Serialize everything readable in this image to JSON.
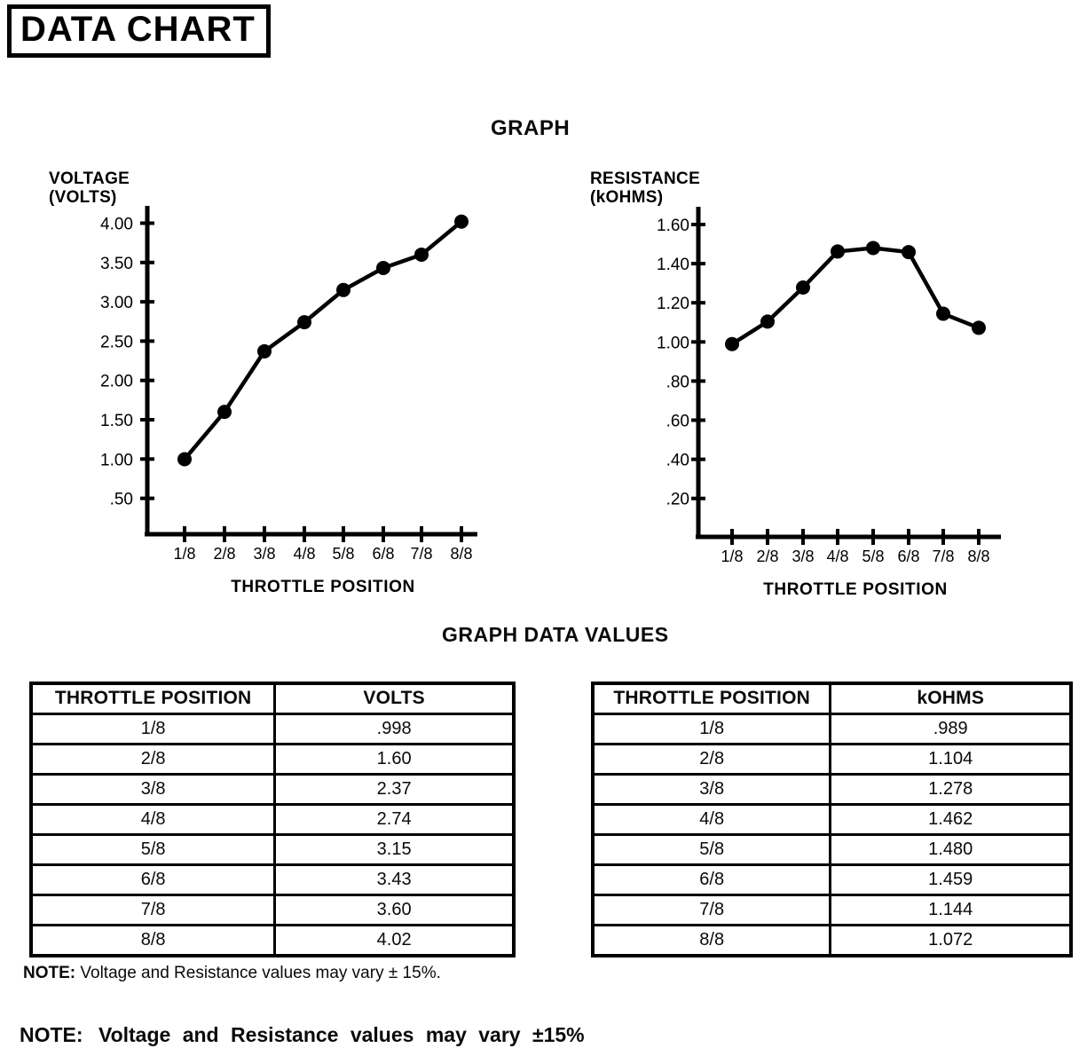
{
  "page": {
    "title": "DATA CHART",
    "graph_heading": "GRAPH",
    "tables_heading": "GRAPH DATA VALUES"
  },
  "chart_data": [
    {
      "type": "line",
      "name": "voltage-vs-throttle-position",
      "title": "GRAPH",
      "ylabel_lines": [
        "VOLTAGE",
        "(VOLTS)"
      ],
      "xlabel": "THROTTLE POSITION",
      "categories": [
        "1/8",
        "2/8",
        "3/8",
        "4/8",
        "5/8",
        "6/8",
        "7/8",
        "8/8"
      ],
      "values": [
        0.998,
        1.6,
        2.37,
        2.74,
        3.15,
        3.43,
        3.6,
        4.02
      ],
      "y_tick_labels": [
        "4.00",
        "3.50",
        "3.00",
        "2.50",
        "2.00",
        "1.50",
        "1.00",
        ".50"
      ],
      "y_tick_values": [
        4.0,
        3.5,
        3.0,
        2.5,
        2.0,
        1.5,
        1.0,
        0.5
      ],
      "ylim": [
        0,
        4.25
      ],
      "grid": false,
      "legend": "none",
      "marker": "filled-circle",
      "line_color": "#000000"
    },
    {
      "type": "line",
      "name": "resistance-vs-throttle-position",
      "title": "GRAPH",
      "ylabel_lines": [
        "RESISTANCE",
        "(kOHMS)"
      ],
      "xlabel": "THROTTLE POSITION",
      "categories": [
        "1/8",
        "2/8",
        "3/8",
        "4/8",
        "5/8",
        "6/8",
        "7/8",
        "8/8"
      ],
      "values": [
        0.989,
        1.104,
        1.278,
        1.462,
        1.48,
        1.459,
        1.144,
        1.072
      ],
      "y_tick_labels": [
        "1.60",
        "1.40",
        "1.20",
        "1.00",
        ".80",
        ".60",
        ".40",
        ".20"
      ],
      "y_tick_values": [
        1.6,
        1.4,
        1.2,
        1.0,
        0.8,
        0.6,
        0.4,
        0.2
      ],
      "ylim": [
        0,
        1.7
      ],
      "grid": false,
      "legend": "none",
      "marker": "filled-circle",
      "line_color": "#000000"
    }
  ],
  "tables": [
    {
      "name": "volts-table",
      "headers": [
        "THROTTLE POSITION",
        "VOLTS"
      ],
      "rows": [
        [
          "1/8",
          ".998"
        ],
        [
          "2/8",
          "1.60"
        ],
        [
          "3/8",
          "2.37"
        ],
        [
          "4/8",
          "2.74"
        ],
        [
          "5/8",
          "3.15"
        ],
        [
          "6/8",
          "3.43"
        ],
        [
          "7/8",
          "3.60"
        ],
        [
          "8/8",
          "4.02"
        ]
      ]
    },
    {
      "name": "kohms-table",
      "headers": [
        "THROTTLE POSITION",
        "kOHMS"
      ],
      "rows": [
        [
          "1/8",
          ".989"
        ],
        [
          "2/8",
          "1.104"
        ],
        [
          "3/8",
          "1.278"
        ],
        [
          "4/8",
          "1.462"
        ],
        [
          "5/8",
          "1.480"
        ],
        [
          "6/8",
          "1.459"
        ],
        [
          "7/8",
          "1.144"
        ],
        [
          "8/8",
          "1.072"
        ]
      ]
    }
  ],
  "notes": {
    "small": {
      "label": "NOTE:",
      "text": " Voltage and Resistance values may vary ± 15%."
    },
    "large": {
      "label": "NOTE:",
      "text": " Voltage and Resistance values may vary ±15%"
    }
  }
}
